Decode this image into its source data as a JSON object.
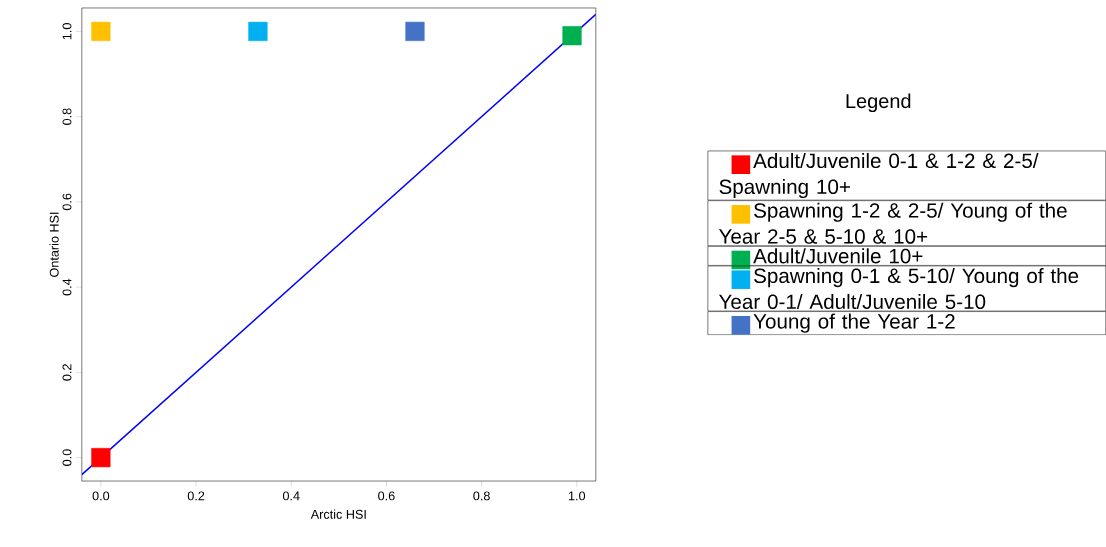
{
  "chart_data": {
    "type": "scatter",
    "xlabel": "Arctic HSI",
    "ylabel": "Ontario HSI",
    "legend_title": "Legend",
    "legend": "right",
    "marker": "square",
    "xlim": [
      -0.04,
      1.04
    ],
    "ylim": [
      -0.055,
      1.055
    ],
    "xticks": [
      {
        "value": 0,
        "label": "0.0"
      },
      0.2,
      0.4,
      0.6,
      0.8,
      {
        "value": 1,
        "label": "1.0"
      }
    ],
    "yticks": [
      {
        "value": 0,
        "label": "0.0"
      },
      0.2,
      0.4,
      0.6,
      0.8,
      {
        "value": 1,
        "label": "1.0"
      }
    ],
    "series": [
      {
        "name": "Adult/Juvenile 0-1 & 1-2 & 2-5/ Spawning 10+",
        "color": "#ff0000",
        "x": [
          0.0
        ],
        "values": [
          0.0
        ]
      },
      {
        "name": "Spawning 1-2 & 2-5/ Young of the Year 2-5 & 5-10 & 10+",
        "color": "#ffc000",
        "x": [
          0.0
        ],
        "values": [
          1.0
        ]
      },
      {
        "name": "Adult/Juvenile 10+",
        "color": "#00b050",
        "x": [
          0.99
        ],
        "values": [
          0.99
        ]
      },
      {
        "name": "Spawning 0-1 & 5-10/ Young of the Year 0-1/ Adult/Juvenile 5-10",
        "color": "#00b0f0",
        "x": [
          0.33
        ],
        "values": [
          1.0
        ]
      },
      {
        "name": "Young of the Year 1-2",
        "color": "#4472c4",
        "x": [
          0.66
        ],
        "values": [
          1.0
        ]
      },
      {
        "type": "line",
        "marker": "none",
        "color": "#0000ff",
        "x": [
          -0.04,
          1.04
        ],
        "values": [
          -0.04,
          1.04
        ]
      }
    ]
  }
}
